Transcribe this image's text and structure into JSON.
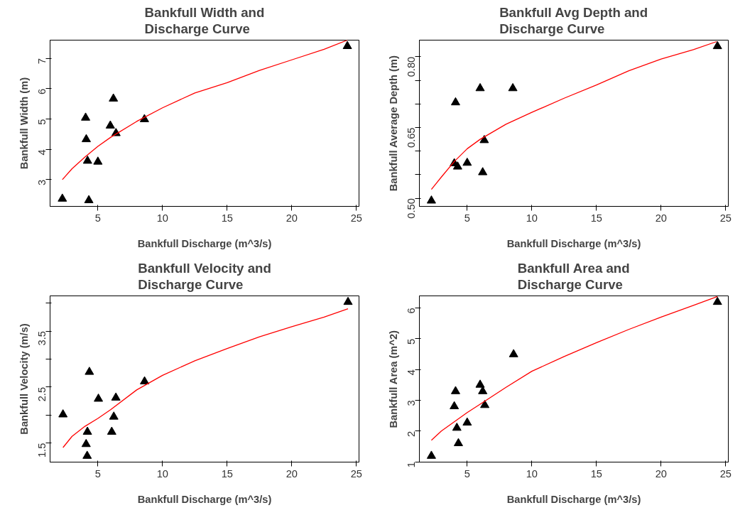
{
  "chart_data": [
    {
      "type": "scatter",
      "title": "Bankfull Width and Discharge Curve",
      "xlabel": "Bankfull Discharge (m^3/s)",
      "ylabel": "Bankfull Width (m)",
      "xlim": [
        1.3,
        25.2
      ],
      "xticks": [
        5,
        10,
        15,
        20,
        25
      ],
      "ylim": [
        2.12,
        7.6
      ],
      "yticks": [
        3,
        4,
        5,
        6,
        7
      ],
      "grid": false,
      "series": [
        {
          "marker": "triangle",
          "color": "#000000",
          "x": [
            2.25,
            4.05,
            4.1,
            4.2,
            4.3,
            5.0,
            5.96,
            6.2,
            6.4,
            8.6,
            24.3
          ],
          "values": [
            2.37,
            5.04,
            4.33,
            3.62,
            2.32,
            3.59,
            4.78,
            5.67,
            4.53,
            4.99,
            7.4
          ]
        },
        {
          "type": "line",
          "color": "#ff0000",
          "x": [
            2.25,
            3,
            4,
            5,
            6,
            8,
            10,
            12.5,
            15,
            17.5,
            20,
            22.5,
            24.3
          ],
          "values": [
            3.0,
            3.36,
            3.75,
            4.1,
            4.4,
            4.92,
            5.37,
            5.86,
            6.2,
            6.6,
            6.95,
            7.3,
            7.6
          ]
        }
      ]
    },
    {
      "type": "scatter",
      "title": "Bankfull Avg Depth and Discharge Curve",
      "xlabel": "Bankfull Discharge (m^3/s)",
      "ylabel": "Bankfull Average Depth (m)",
      "xlim": [
        1.3,
        25.2
      ],
      "xticks": [
        5,
        10,
        15,
        20,
        25
      ],
      "ylim": [
        0.483,
        0.835
      ],
      "yticks": [
        {
          "value": 0.5,
          "label": "0.50"
        },
        {
          "value": 0.55,
          "label": null
        },
        {
          "value": 0.6,
          "label": null
        },
        {
          "value": 0.65,
          "label": "0.65"
        },
        {
          "value": 0.7,
          "label": null
        },
        {
          "value": 0.75,
          "label": null
        },
        {
          "value": 0.8,
          "label": "0.80"
        }
      ],
      "grid": false,
      "series": [
        {
          "marker": "triangle",
          "color": "#000000",
          "x": [
            2.23,
            4.1,
            4.0,
            4.26,
            5.0,
            6.0,
            6.2,
            6.32,
            8.53,
            24.36
          ],
          "values": [
            0.495,
            0.703,
            0.574,
            0.567,
            0.575,
            0.733,
            0.555,
            0.623,
            0.733,
            0.822
          ]
        },
        {
          "type": "line",
          "color": "#ff0000",
          "x": [
            2.23,
            3,
            4,
            5,
            6,
            8,
            10,
            12.5,
            15,
            17.5,
            20,
            22.5,
            24.3
          ],
          "values": [
            0.519,
            0.545,
            0.578,
            0.605,
            0.625,
            0.657,
            0.682,
            0.712,
            0.74,
            0.77,
            0.795,
            0.815,
            0.832
          ]
        }
      ]
    },
    {
      "type": "scatter",
      "title": "Bankfull Velocity and Discharge Curve",
      "xlabel": "Bankfull Discharge (m^3/s)",
      "ylabel": "Bankfull Velocity (m/s)",
      "xlim": [
        1.3,
        25.2
      ],
      "xticks": [
        5,
        10,
        15,
        20,
        25
      ],
      "ylim": [
        1.16,
        4.13
      ],
      "yticks": [
        {
          "value": 1.5,
          "label": "1.5"
        },
        {
          "value": 2.0,
          "label": null
        },
        {
          "value": 2.5,
          "label": "2.5"
        },
        {
          "value": 3.0,
          "label": null
        },
        {
          "value": 3.5,
          "label": "3.5"
        },
        {
          "value": 4.0,
          "label": null
        }
      ],
      "grid": false,
      "series": [
        {
          "marker": "triangle",
          "color": "#000000",
          "x": [
            2.3,
            4.34,
            4.19,
            4.09,
            4.17,
            5.04,
            6.07,
            6.23,
            6.39,
            8.61,
            24.35
          ],
          "values": [
            2.01,
            2.77,
            1.7,
            1.48,
            1.27,
            2.29,
            1.7,
            1.97,
            2.31,
            2.6,
            4.02
          ]
        },
        {
          "type": "line",
          "color": "#ff0000",
          "x": [
            2.3,
            3,
            4,
            5,
            6,
            8,
            10,
            12.5,
            15,
            17.5,
            20,
            22.5,
            24.35
          ],
          "values": [
            1.42,
            1.62,
            1.8,
            1.94,
            2.1,
            2.45,
            2.71,
            2.97,
            3.19,
            3.4,
            3.58,
            3.75,
            3.9
          ]
        }
      ]
    },
    {
      "type": "scatter",
      "title": "Bankfull Area and Discharge Curve",
      "xlabel": "Bankfull Discharge (m^3/s)",
      "ylabel": "Bankfull Area (m^2)",
      "xlim": [
        1.3,
        25.2
      ],
      "xticks": [
        5,
        10,
        15,
        20,
        25
      ],
      "ylim": [
        0.99,
        6.39
      ],
      "yticks": [
        1,
        2,
        3,
        4,
        5,
        6
      ],
      "grid": false,
      "series": [
        {
          "marker": "triangle",
          "color": "#000000",
          "x": [
            2.23,
            4.1,
            4.0,
            4.2,
            4.32,
            5.0,
            6.0,
            6.2,
            6.36,
            8.59,
            24.36
          ],
          "values": [
            1.19,
            3.29,
            2.8,
            2.1,
            1.6,
            2.27,
            3.5,
            3.29,
            2.84,
            4.49,
            6.19
          ]
        },
        {
          "type": "line",
          "color": "#ff0000",
          "x": [
            2.23,
            3,
            4,
            5,
            6,
            8,
            10,
            12.5,
            15,
            17.5,
            20,
            22.5,
            24.36
          ],
          "values": [
            1.7,
            2.0,
            2.3,
            2.6,
            2.87,
            3.42,
            3.94,
            4.42,
            4.87,
            5.3,
            5.7,
            6.08,
            6.37
          ]
        }
      ]
    }
  ]
}
